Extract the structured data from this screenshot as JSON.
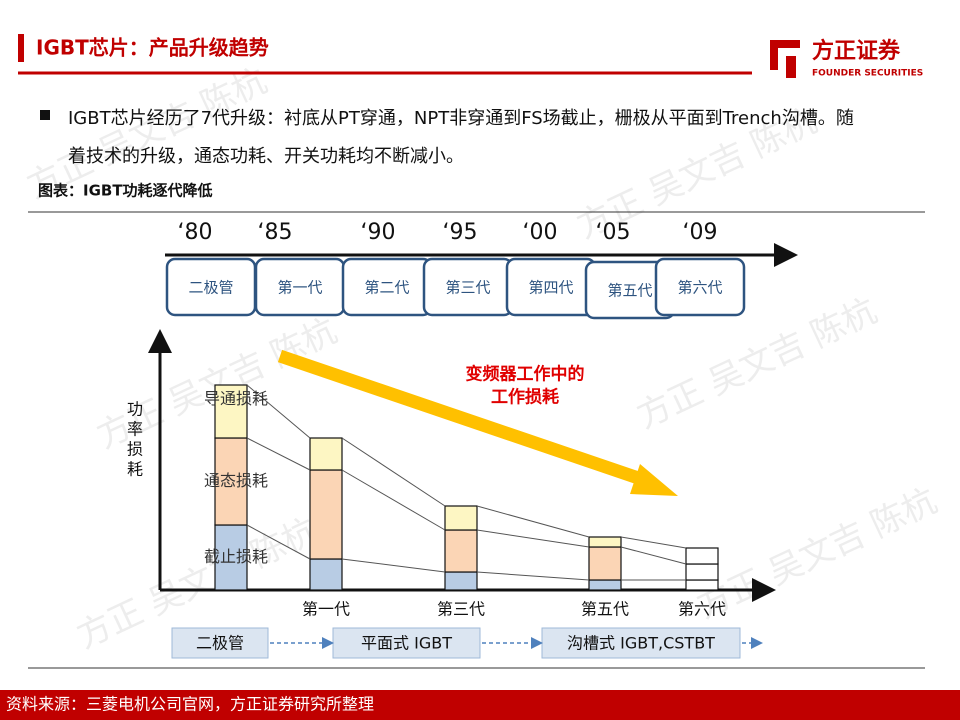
{
  "header": {
    "title": "IGBT芯片：产品升级趋势",
    "logo_text": "方正证券",
    "logo_sub": "FOUNDER SECURITIES"
  },
  "bullet": {
    "text": "IGBT芯片经历了7代升级：衬底从PT穿通，NPT非穿通到FS场截止，栅极从平面到Trench沟槽。随着技术的升级，通态功耗、开关功耗均不断减小。"
  },
  "figure_caption": "图表：IGBT功耗逐代降低",
  "watermark": "方正 吴文吉 陈杭",
  "chart_data": {
    "type": "stacked-bar",
    "timeline": {
      "years": [
        "‘80",
        "‘85",
        "‘90",
        "‘95",
        "‘00",
        "‘05",
        "‘09"
      ],
      "generations": [
        "二极管",
        "第一代",
        "第二代",
        "第三代",
        "第四代",
        "第五代",
        "第六代"
      ]
    },
    "y_label": "功率损耗",
    "annotation": [
      "变频器工作中的",
      "工作损耗"
    ],
    "categories": [
      null,
      "第一代",
      "第三代",
      "第五代",
      "第六代"
    ],
    "ylim": [
      0,
      255
    ],
    "series": [
      {
        "name": "截止损耗",
        "colors": [
          "#b8cce4",
          "#b8cce4",
          "#b8cce4",
          "#b8cce4",
          "#ffffff"
        ],
        "values": [
          65,
          31,
          18,
          10,
          10
        ]
      },
      {
        "name": "通态损耗",
        "colors": [
          "#fbd5b5",
          "#fbd5b5",
          "#fbd5b5",
          "#fbd5b5",
          "#ffffff"
        ],
        "values": [
          87,
          89,
          42,
          33,
          16
        ]
      },
      {
        "name": "导通损耗",
        "colors": [
          "#fdf6c3",
          "#fdf6c3",
          "#fdf6c3",
          "#fdf6c3",
          "#ffffff"
        ],
        "values": [
          53,
          32,
          24,
          10,
          16
        ]
      }
    ],
    "tech_bands": [
      "二极管",
      "平面式 IGBT",
      "沟槽式 IGBT,CSTBT"
    ]
  },
  "footer": {
    "source": "资料来源：三菱电机公司官网，方正证券研究所整理"
  }
}
